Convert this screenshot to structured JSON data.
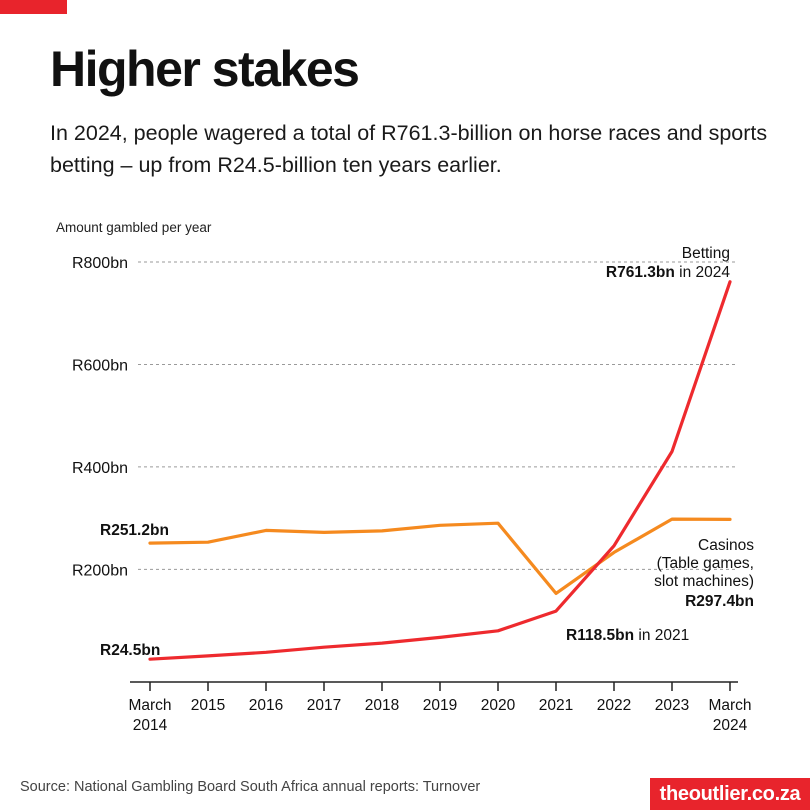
{
  "header": {
    "title": "Higher stakes",
    "subtitle": "In 2024, people wagered a total of R761.3-billion on horse races and sports betting – up from R24.5-billion ten years earlier."
  },
  "footer": {
    "source": "Source: National Gambling Board South Africa annual reports: Turnover",
    "logo": "theoutlier.co.za"
  },
  "colors": {
    "betting": "#ee2a2e",
    "casinos": "#f58a1f",
    "accent": "#e8242c",
    "grid": "#9a9a9a"
  },
  "chart_data": {
    "type": "line",
    "ylabel": "Amount gambled per year",
    "xlabel": "",
    "ylim": [
      -20,
      800
    ],
    "yticks": [
      200,
      400,
      600,
      800
    ],
    "ytick_labels": [
      "R200bn",
      "R400bn",
      "R600bn",
      "R800bn"
    ],
    "grid": true,
    "x": [
      2014,
      2015,
      2016,
      2017,
      2018,
      2019,
      2020,
      2021,
      2022,
      2023,
      2024
    ],
    "xtick_labels": [
      [
        "March",
        "2014"
      ],
      [
        "2015"
      ],
      [
        "2016"
      ],
      [
        "2017"
      ],
      [
        "2018"
      ],
      [
        "2019"
      ],
      [
        "2020"
      ],
      [
        "2021"
      ],
      [
        "2022"
      ],
      [
        "2023"
      ],
      [
        "March",
        "2024"
      ]
    ],
    "series": [
      {
        "name": "Casinos",
        "color": "#f58a1f",
        "values": [
          251.2,
          253,
          276,
          272,
          275,
          286,
          290,
          153,
          233,
          298,
          297.4
        ]
      },
      {
        "name": "Betting",
        "color": "#ee2a2e",
        "values": [
          24.5,
          31,
          38,
          48,
          56,
          67,
          80,
          118.5,
          246,
          430,
          761.3
        ]
      }
    ],
    "annotations": {
      "betting_start": "R24.5bn",
      "casino_start": "R251.2bn",
      "betting_end_name": "Betting",
      "betting_end_value": "R761.3bn",
      "betting_end_suffix": " in 2024",
      "betting_2021_value": "R118.5bn",
      "betting_2021_suffix": " in 2021",
      "casino_end_lines": [
        "Casinos",
        "(Table games,",
        "slot machines)"
      ],
      "casino_end_value": "R297.4bn"
    }
  }
}
